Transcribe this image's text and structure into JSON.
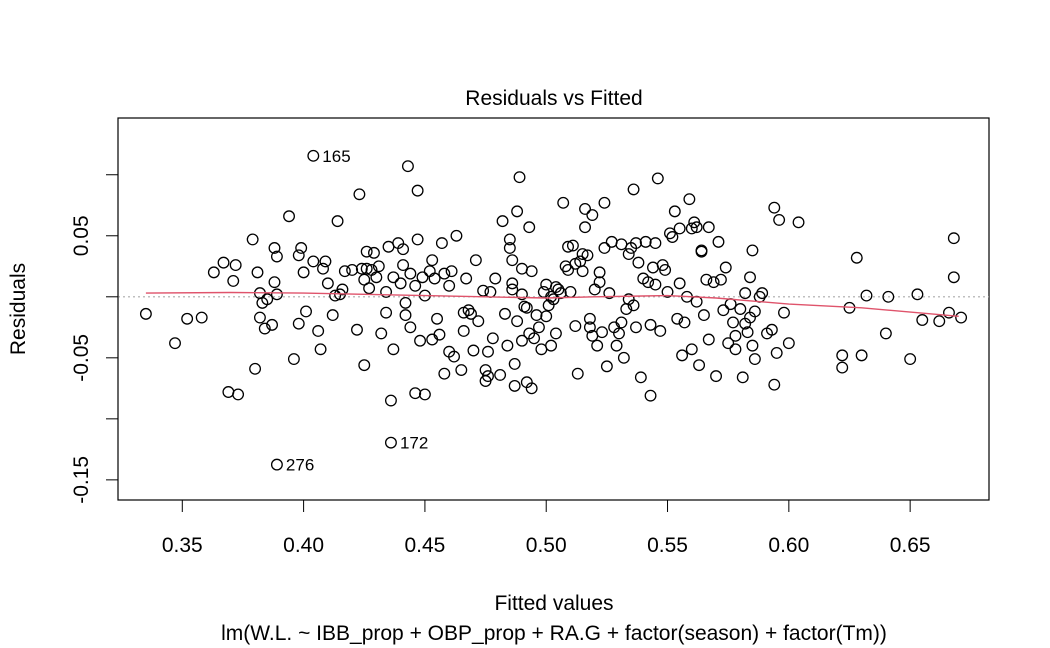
{
  "chart_data": {
    "type": "scatter",
    "title": "Residuals vs Fitted",
    "xlabel": "Fitted values",
    "ylabel": "Residuals",
    "subtitle": "lm(W.L. ~ IBB_prop + OBP_prop + RA.G + factor(season) + factor(Tm))",
    "xlim": [
      0.3235,
      0.6825
    ],
    "ylim": [
      -0.1665,
      0.1465
    ],
    "x_ticks": [
      0.35,
      0.4,
      0.45,
      0.5,
      0.55,
      0.6,
      0.65
    ],
    "x_tick_labels": [
      "0.35",
      "0.40",
      "0.45",
      "0.50",
      "0.55",
      "0.60",
      "0.65"
    ],
    "y_ticks": [
      -0.15,
      -0.1,
      -0.05,
      0.0,
      0.05,
      0.1
    ],
    "y_tick_labels": [
      "-0.15",
      "",
      "-0.05",
      "",
      "0.05",
      ""
    ],
    "reference_line": {
      "y": 0,
      "style": "dotted",
      "color": "#aaaaaa"
    },
    "smooth_color": "#df536b",
    "smooth": [
      [
        0.335,
        0.003
      ],
      [
        0.37,
        0.0035
      ],
      [
        0.4,
        0.003
      ],
      [
        0.45,
        0.001
      ],
      [
        0.5,
        -0.001
      ],
      [
        0.52,
        0.0
      ],
      [
        0.55,
        0.001
      ],
      [
        0.57,
        -0.001
      ],
      [
        0.6,
        -0.006
      ],
      [
        0.63,
        -0.009
      ],
      [
        0.67,
        -0.016
      ]
    ],
    "labeled_points": [
      {
        "label": "165",
        "x": 0.404,
        "y": 0.1155
      },
      {
        "label": "172",
        "x": 0.436,
        "y": -0.1195
      },
      {
        "label": "276",
        "x": 0.389,
        "y": -0.1375
      }
    ],
    "points": [
      [
        0.335,
        -0.014
      ],
      [
        0.347,
        -0.038
      ],
      [
        0.352,
        -0.018
      ],
      [
        0.358,
        -0.017
      ],
      [
        0.363,
        0.02
      ],
      [
        0.367,
        0.028
      ],
      [
        0.369,
        -0.078
      ],
      [
        0.371,
        0.013
      ],
      [
        0.372,
        0.026
      ],
      [
        0.373,
        -0.08
      ],
      [
        0.379,
        0.047
      ],
      [
        0.38,
        -0.059
      ],
      [
        0.381,
        0.02
      ],
      [
        0.382,
        0.003
      ],
      [
        0.382,
        -0.017
      ],
      [
        0.383,
        -0.005
      ],
      [
        0.384,
        -0.026
      ],
      [
        0.385,
        -0.002
      ],
      [
        0.387,
        -0.023
      ],
      [
        0.388,
        0.04
      ],
      [
        0.388,
        0.012
      ],
      [
        0.389,
        0.033
      ],
      [
        0.389,
        0.002
      ],
      [
        0.394,
        0.066
      ],
      [
        0.396,
        -0.051
      ],
      [
        0.398,
        0.034
      ],
      [
        0.398,
        -0.022
      ],
      [
        0.399,
        0.04
      ],
      [
        0.4,
        0.02
      ],
      [
        0.401,
        -0.012
      ],
      [
        0.404,
        0.029
      ],
      [
        0.406,
        -0.028
      ],
      [
        0.407,
        -0.043
      ],
      [
        0.408,
        0.023
      ],
      [
        0.409,
        0.029
      ],
      [
        0.41,
        0.011
      ],
      [
        0.412,
        -0.015
      ],
      [
        0.413,
        0.001
      ],
      [
        0.414,
        0.062
      ],
      [
        0.415,
        0.002
      ],
      [
        0.416,
        0.006
      ],
      [
        0.417,
        0.021
      ],
      [
        0.42,
        0.022
      ],
      [
        0.422,
        -0.027
      ],
      [
        0.423,
        0.084
      ],
      [
        0.424,
        0.023
      ],
      [
        0.425,
        0.014
      ],
      [
        0.425,
        -0.056
      ],
      [
        0.426,
        0.037
      ],
      [
        0.426,
        0.023
      ],
      [
        0.427,
        0.007
      ],
      [
        0.428,
        0.022
      ],
      [
        0.429,
        0.036
      ],
      [
        0.43,
        0.016
      ],
      [
        0.431,
        0.025
      ],
      [
        0.432,
        -0.03
      ],
      [
        0.434,
        0.004
      ],
      [
        0.434,
        -0.013
      ],
      [
        0.435,
        0.041
      ],
      [
        0.436,
        -0.085
      ],
      [
        0.437,
        0.016
      ],
      [
        0.437,
        -0.043
      ],
      [
        0.439,
        0.044
      ],
      [
        0.44,
        0.011
      ],
      [
        0.441,
        0.039
      ],
      [
        0.441,
        0.026
      ],
      [
        0.442,
        -0.015
      ],
      [
        0.442,
        -0.005
      ],
      [
        0.443,
        0.107
      ],
      [
        0.444,
        0.019
      ],
      [
        0.444,
        -0.025
      ],
      [
        0.446,
        -0.079
      ],
      [
        0.446,
        0.009
      ],
      [
        0.447,
        0.087
      ],
      [
        0.447,
        0.047
      ],
      [
        0.448,
        -0.036
      ],
      [
        0.449,
        0.016
      ],
      [
        0.45,
        -0.08
      ],
      [
        0.45,
        0.001
      ],
      [
        0.452,
        0.021
      ],
      [
        0.453,
        0.03
      ],
      [
        0.453,
        -0.035
      ],
      [
        0.454,
        0.015
      ],
      [
        0.455,
        -0.018
      ],
      [
        0.456,
        -0.031
      ],
      [
        0.457,
        0.044
      ],
      [
        0.458,
        -0.063
      ],
      [
        0.458,
        0.019
      ],
      [
        0.46,
        -0.045
      ],
      [
        0.46,
        0.009
      ],
      [
        0.461,
        0.021
      ],
      [
        0.462,
        -0.049
      ],
      [
        0.463,
        0.05
      ],
      [
        0.465,
        -0.06
      ],
      [
        0.466,
        -0.013
      ],
      [
        0.466,
        -0.028
      ],
      [
        0.467,
        0.015
      ],
      [
        0.468,
        -0.011
      ],
      [
        0.469,
        -0.014
      ],
      [
        0.47,
        -0.044
      ],
      [
        0.471,
        0.03
      ],
      [
        0.472,
        -0.02
      ],
      [
        0.474,
        0.005
      ],
      [
        0.475,
        -0.06
      ],
      [
        0.475,
        -0.069
      ],
      [
        0.476,
        -0.045
      ],
      [
        0.476,
        -0.065
      ],
      [
        0.477,
        0.004
      ],
      [
        0.478,
        -0.034
      ],
      [
        0.479,
        0.015
      ],
      [
        0.481,
        -0.064
      ],
      [
        0.482,
        0.062
      ],
      [
        0.483,
        -0.014
      ],
      [
        0.484,
        -0.04
      ],
      [
        0.485,
        0.047
      ],
      [
        0.485,
        0.04
      ],
      [
        0.486,
        0.03
      ],
      [
        0.486,
        0.011
      ],
      [
        0.486,
        0.006
      ],
      [
        0.487,
        -0.055
      ],
      [
        0.487,
        -0.073
      ],
      [
        0.488,
        0.07
      ],
      [
        0.488,
        -0.02
      ],
      [
        0.489,
        0.098
      ],
      [
        0.49,
        0.023
      ],
      [
        0.49,
        0.002
      ],
      [
        0.49,
        -0.036
      ],
      [
        0.491,
        -0.008
      ],
      [
        0.492,
        -0.009
      ],
      [
        0.492,
        -0.07
      ],
      [
        0.493,
        0.057
      ],
      [
        0.493,
        -0.03
      ],
      [
        0.494,
        -0.075
      ],
      [
        0.494,
        0.021
      ],
      [
        0.495,
        -0.034
      ],
      [
        0.496,
        -0.015
      ],
      [
        0.497,
        -0.025
      ],
      [
        0.498,
        -0.043
      ],
      [
        0.499,
        0.004
      ],
      [
        0.5,
        -0.016
      ],
      [
        0.5,
        0.01
      ],
      [
        0.501,
        -0.007
      ],
      [
        0.502,
        -0.04
      ],
      [
        0.502,
        0.0
      ],
      [
        0.503,
        -0.002
      ],
      [
        0.504,
        0.008
      ],
      [
        0.504,
        -0.03
      ],
      [
        0.505,
        0.006
      ],
      [
        0.506,
        0.003
      ],
      [
        0.507,
        0.077
      ],
      [
        0.508,
        0.025
      ],
      [
        0.509,
        0.041
      ],
      [
        0.509,
        0.022
      ],
      [
        0.51,
        0.004
      ],
      [
        0.511,
        0.042
      ],
      [
        0.512,
        0.027
      ],
      [
        0.512,
        -0.024
      ],
      [
        0.513,
        -0.063
      ],
      [
        0.514,
        0.029
      ],
      [
        0.515,
        0.035
      ],
      [
        0.515,
        0.021
      ],
      [
        0.516,
        0.057
      ],
      [
        0.516,
        0.072
      ],
      [
        0.517,
        0.034
      ],
      [
        0.518,
        -0.018
      ],
      [
        0.518,
        -0.025
      ],
      [
        0.519,
        0.067
      ],
      [
        0.519,
        -0.032
      ],
      [
        0.52,
        0.006
      ],
      [
        0.521,
        -0.04
      ],
      [
        0.522,
        0.02
      ],
      [
        0.522,
        0.012
      ],
      [
        0.523,
        -0.029
      ],
      [
        0.524,
        0.077
      ],
      [
        0.524,
        0.04
      ],
      [
        0.525,
        -0.057
      ],
      [
        0.526,
        0.003
      ],
      [
        0.527,
        0.045
      ],
      [
        0.528,
        -0.025
      ],
      [
        0.529,
        -0.04
      ],
      [
        0.53,
        -0.03
      ],
      [
        0.531,
        0.043
      ],
      [
        0.531,
        -0.021
      ],
      [
        0.532,
        -0.05
      ],
      [
        0.533,
        -0.01
      ],
      [
        0.534,
        -0.002
      ],
      [
        0.534,
        0.035
      ],
      [
        0.535,
        0.04
      ],
      [
        0.536,
        -0.007
      ],
      [
        0.536,
        0.088
      ],
      [
        0.537,
        0.044
      ],
      [
        0.537,
        -0.025
      ],
      [
        0.538,
        0.028
      ],
      [
        0.539,
        -0.066
      ],
      [
        0.54,
        0.015
      ],
      [
        0.541,
        0.045
      ],
      [
        0.542,
        0.012
      ],
      [
        0.543,
        -0.081
      ],
      [
        0.543,
        -0.023
      ],
      [
        0.544,
        0.024
      ],
      [
        0.545,
        0.044
      ],
      [
        0.545,
        0.01
      ],
      [
        0.546,
        0.097
      ],
      [
        0.547,
        -0.028
      ],
      [
        0.548,
        0.026
      ],
      [
        0.549,
        0.022
      ],
      [
        0.55,
        0.004
      ],
      [
        0.551,
        0.052
      ],
      [
        0.552,
        0.049
      ],
      [
        0.553,
        0.07
      ],
      [
        0.554,
        -0.018
      ],
      [
        0.555,
        0.056
      ],
      [
        0.555,
        0.011
      ],
      [
        0.556,
        -0.048
      ],
      [
        0.557,
        -0.021
      ],
      [
        0.558,
        0.0
      ],
      [
        0.559,
        0.08
      ],
      [
        0.56,
        0.056
      ],
      [
        0.56,
        -0.043
      ],
      [
        0.561,
        0.061
      ],
      [
        0.562,
        -0.004
      ],
      [
        0.562,
        0.057
      ],
      [
        0.563,
        -0.056
      ],
      [
        0.564,
        0.037
      ],
      [
        0.564,
        0.038
      ],
      [
        0.565,
        -0.015
      ],
      [
        0.566,
        0.014
      ],
      [
        0.567,
        0.057
      ],
      [
        0.567,
        -0.035
      ],
      [
        0.569,
        0.012
      ],
      [
        0.57,
        -0.065
      ],
      [
        0.571,
        0.045
      ],
      [
        0.572,
        0.014
      ],
      [
        0.573,
        -0.011
      ],
      [
        0.574,
        0.024
      ],
      [
        0.575,
        -0.038
      ],
      [
        0.576,
        -0.006
      ],
      [
        0.577,
        -0.021
      ],
      [
        0.578,
        -0.032
      ],
      [
        0.578,
        -0.043
      ],
      [
        0.58,
        -0.01
      ],
      [
        0.581,
        -0.066
      ],
      [
        0.582,
        0.003
      ],
      [
        0.582,
        -0.022
      ],
      [
        0.583,
        -0.029
      ],
      [
        0.584,
        -0.017
      ],
      [
        0.584,
        0.016
      ],
      [
        0.585,
        -0.04
      ],
      [
        0.585,
        0.038
      ],
      [
        0.586,
        -0.012
      ],
      [
        0.586,
        -0.051
      ],
      [
        0.588,
        0.0
      ],
      [
        0.589,
        0.003
      ],
      [
        0.591,
        -0.03
      ],
      [
        0.593,
        -0.027
      ],
      [
        0.594,
        -0.072
      ],
      [
        0.594,
        0.073
      ],
      [
        0.595,
        -0.046
      ],
      [
        0.596,
        0.063
      ],
      [
        0.598,
        -0.013
      ],
      [
        0.6,
        -0.038
      ],
      [
        0.604,
        0.061
      ],
      [
        0.622,
        -0.048
      ],
      [
        0.622,
        -0.058
      ],
      [
        0.625,
        -0.009
      ],
      [
        0.628,
        0.032
      ],
      [
        0.63,
        -0.048
      ],
      [
        0.632,
        0.001
      ],
      [
        0.64,
        -0.03
      ],
      [
        0.641,
        0.0
      ],
      [
        0.65,
        -0.051
      ],
      [
        0.653,
        0.002
      ],
      [
        0.655,
        -0.019
      ],
      [
        0.662,
        -0.02
      ],
      [
        0.666,
        -0.013
      ],
      [
        0.668,
        0.048
      ],
      [
        0.668,
        0.016
      ],
      [
        0.671,
        -0.017
      ]
    ]
  }
}
